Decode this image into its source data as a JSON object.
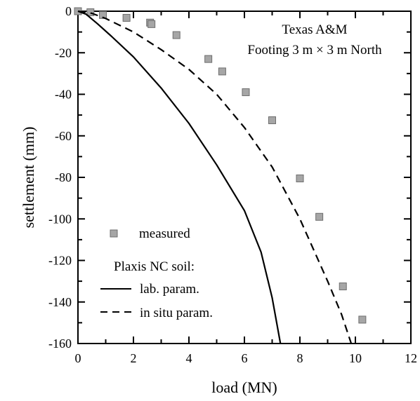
{
  "chart_data": {
    "type": "line",
    "title": "",
    "annotations": [
      "Texas A&M",
      "Footing 3 m × 3 m North"
    ],
    "xlabel": "load (MN)",
    "ylabel": "settlement (mm)",
    "xlim": [
      0,
      12
    ],
    "ylim": [
      -160,
      0
    ],
    "xticks": [
      "0",
      "2",
      "4",
      "6",
      "8",
      "10",
      "12"
    ],
    "yticks": [
      "0",
      "-20",
      "-40",
      "-60",
      "-80",
      "-100",
      "-120",
      "-140",
      "-160"
    ],
    "legend": {
      "position": "bottom-left",
      "entries": [
        {
          "label": "measured",
          "kind": "marker"
        },
        {
          "heading": "Plaxis NC soil:"
        },
        {
          "label": "lab. param.",
          "kind": "solid"
        },
        {
          "label": "in situ param.",
          "kind": "dashed"
        }
      ]
    },
    "series": [
      {
        "name": "measured",
        "style": "square-marker",
        "color": "#a6a6a6",
        "points": [
          [
            0,
            0
          ],
          [
            0.45,
            -0.5
          ],
          [
            0.9,
            -1.8
          ],
          [
            1.75,
            -3.2
          ],
          [
            2.6,
            -5.5
          ],
          [
            2.65,
            -6.2
          ],
          [
            3.55,
            -11.5
          ],
          [
            4.7,
            -23
          ],
          [
            5.2,
            -29
          ],
          [
            6.05,
            -39
          ],
          [
            7.0,
            -52.5
          ],
          [
            8.0,
            -80.5
          ],
          [
            8.7,
            -99
          ],
          [
            9.55,
            -132.5
          ],
          [
            10.25,
            -148.5
          ]
        ]
      },
      {
        "name": "lab. param.",
        "style": "solid",
        "color": "#000000",
        "points": [
          [
            0,
            0
          ],
          [
            0.3,
            -1.5
          ],
          [
            0.7,
            -6
          ],
          [
            1.2,
            -12
          ],
          [
            2.0,
            -22
          ],
          [
            3.0,
            -37
          ],
          [
            4.0,
            -54
          ],
          [
            5.0,
            -74
          ],
          [
            6.0,
            -96
          ],
          [
            6.6,
            -116
          ],
          [
            7.0,
            -138
          ],
          [
            7.3,
            -160
          ]
        ]
      },
      {
        "name": "in situ param.",
        "style": "dashed",
        "color": "#000000",
        "points": [
          [
            0,
            0
          ],
          [
            0.5,
            -1
          ],
          [
            1.0,
            -3.5
          ],
          [
            2.0,
            -10
          ],
          [
            3.0,
            -18.5
          ],
          [
            4.0,
            -28
          ],
          [
            5.0,
            -40
          ],
          [
            6.0,
            -56
          ],
          [
            7.0,
            -75
          ],
          [
            8.0,
            -100
          ],
          [
            9.0,
            -130
          ],
          [
            9.5,
            -146
          ],
          [
            9.85,
            -160
          ]
        ]
      }
    ]
  }
}
